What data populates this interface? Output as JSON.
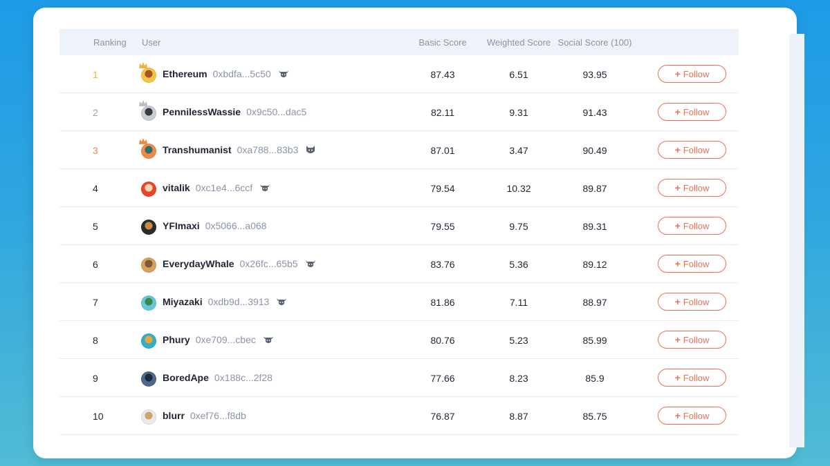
{
  "header": {
    "ranking": "Ranking",
    "user": "User",
    "basic": "Basic Score",
    "weighted": "Weighted Score",
    "social": "Social Score (100)"
  },
  "follow_label": "Follow",
  "colors": {
    "gold": "#f0b23a",
    "silver": "#9aa1b0",
    "bronze": "#ee8a4e",
    "follow": "#ef6f52"
  },
  "rows": [
    {
      "rank": "1",
      "name": "Ethereum",
      "address": "0xbdfa...5c50",
      "badge": "bull-badge-icon",
      "basic": "87.43",
      "weighted": "6.51",
      "social": "93.95"
    },
    {
      "rank": "2",
      "name": "PennilessWassie",
      "address": "0x9c50...dac5",
      "badge": "",
      "basic": "82.11",
      "weighted": "9.31",
      "social": "91.43"
    },
    {
      "rank": "3",
      "name": "Transhumanist",
      "address": "0xa788...83b3",
      "badge": "cat-badge-icon",
      "basic": "87.01",
      "weighted": "3.47",
      "social": "90.49"
    },
    {
      "rank": "4",
      "name": "vitalik",
      "address": "0xc1e4...6ccf",
      "badge": "bull-badge-icon",
      "basic": "79.54",
      "weighted": "10.32",
      "social": "89.87"
    },
    {
      "rank": "5",
      "name": "YFImaxi",
      "address": "0x5066...a068",
      "badge": "",
      "basic": "79.55",
      "weighted": "9.75",
      "social": "89.31"
    },
    {
      "rank": "6",
      "name": "EverydayWhale",
      "address": "0x26fc...65b5",
      "badge": "bull-badge-icon",
      "basic": "83.76",
      "weighted": "5.36",
      "social": "89.12"
    },
    {
      "rank": "7",
      "name": "Miyazaki",
      "address": "0xdb9d...3913",
      "badge": "bull-badge-icon",
      "basic": "81.86",
      "weighted": "7.11",
      "social": "88.97"
    },
    {
      "rank": "8",
      "name": "Phury",
      "address": "0xe709...cbec",
      "badge": "bull-badge-icon",
      "basic": "80.76",
      "weighted": "5.23",
      "social": "85.99"
    },
    {
      "rank": "9",
      "name": "BoredApe",
      "address": "0x188c...2f28",
      "badge": "",
      "basic": "77.66",
      "weighted": "8.23",
      "social": "85.9"
    },
    {
      "rank": "10",
      "name": "blurr",
      "address": "0xef76...f8db",
      "badge": "",
      "basic": "76.87",
      "weighted": "8.87",
      "social": "85.75"
    }
  ]
}
